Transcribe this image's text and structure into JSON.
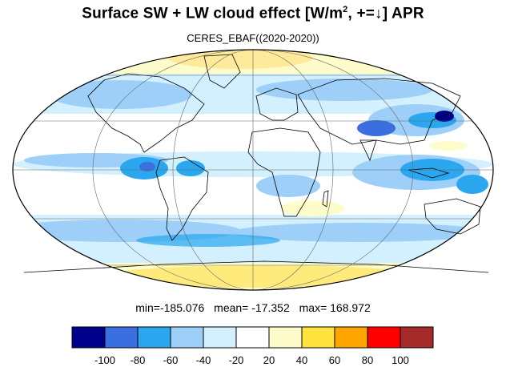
{
  "title": {
    "main": "Surface SW + LW cloud effect [W/m",
    "sup": "2",
    "rest": ", +=↓]  APR"
  },
  "subtitle": "CERES_EBAF((2020-2020))",
  "stats": {
    "min": "min=-185.076",
    "mean": "mean= -17.352",
    "max": "max= 168.972"
  },
  "legend": {
    "colors": [
      "#00008b",
      "#3b6fe0",
      "#2aa7ee",
      "#9ecff8",
      "#d2f0fe",
      "#ffffff",
      "#fffccb",
      "#ffe33c",
      "#ffa500",
      "#ff0000",
      "#a52a2a"
    ],
    "labels": [
      "-100",
      "-80",
      "-60",
      "-40",
      "-20",
      "20",
      "40",
      "60",
      "80",
      "100"
    ]
  },
  "map": {
    "projection": "mollweide",
    "ocean_color": "#ffffff",
    "cloud_colors": [
      "#d2f0fe",
      "#9ecff8",
      "#2aa7ee",
      "#3b6fe0",
      "#00008b"
    ],
    "warm_color": "#fff2a0"
  }
}
